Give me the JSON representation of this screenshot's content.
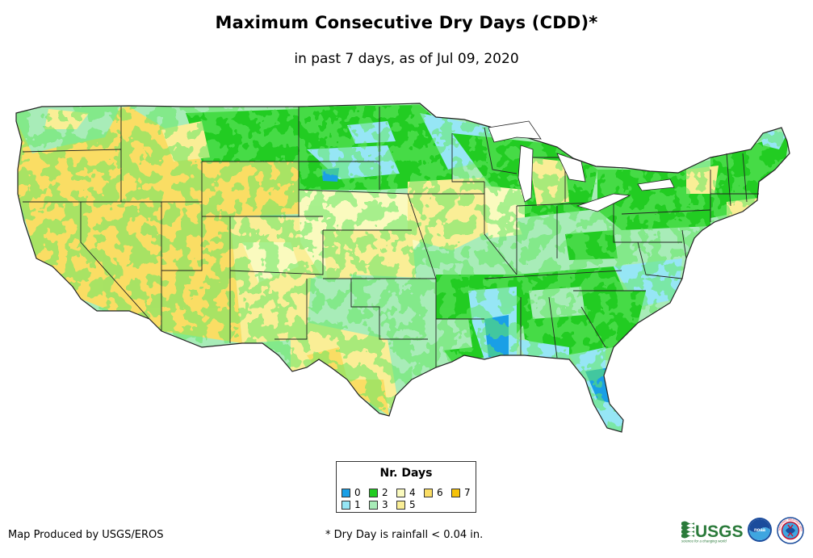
{
  "title": "Maximum Consecutive Dry Days (CDD)*",
  "subtitle": "in past 7 days, as of Jul 09, 2020",
  "legend": {
    "title": "Nr. Days",
    "items": [
      {
        "label": "0",
        "color": "#1a9fe6"
      },
      {
        "label": "1",
        "color": "#96e6f5"
      },
      {
        "label": "2",
        "color": "#22cc22"
      },
      {
        "label": "3",
        "color": "#a8ecb8"
      },
      {
        "label": "4",
        "color": "#fafabe"
      },
      {
        "label": "5",
        "color": "#faee96"
      },
      {
        "label": "6",
        "color": "#fadd64"
      },
      {
        "label": "7",
        "color": "#f5c20a"
      }
    ]
  },
  "credit": "Map Produced by USGS/EROS",
  "footnote": "* Dry Day is rainfall < 0.04 in.",
  "logos": {
    "usgs": "USGS",
    "usgs_tagline": "science for a changing world",
    "noaa": "noaa",
    "nws": "NATIONAL WEATHER SERVICE"
  }
}
